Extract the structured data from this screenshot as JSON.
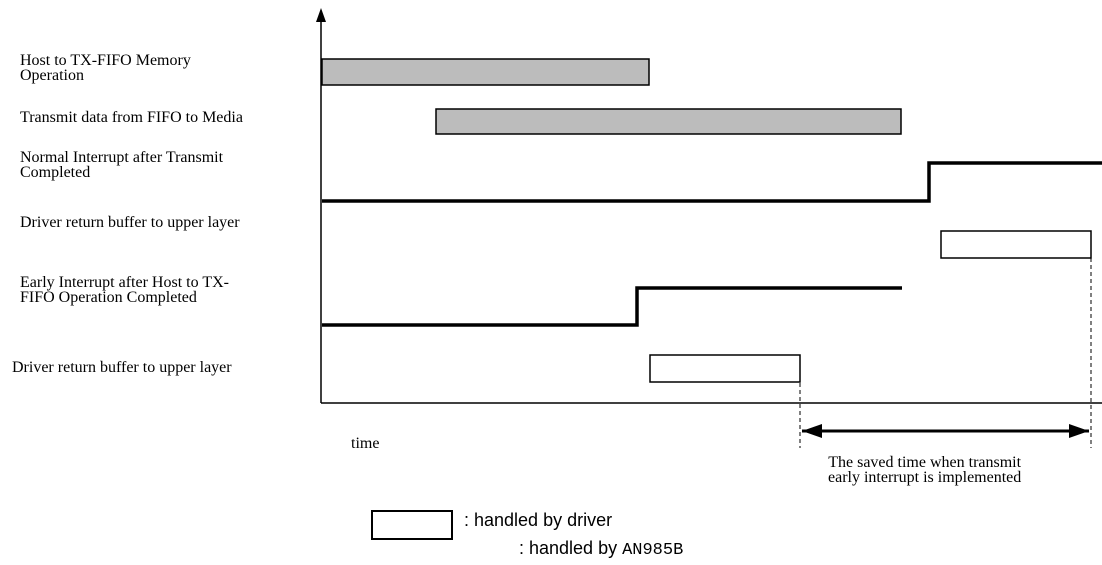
{
  "rows": [
    {
      "label": "Host to TX-FIFO Memory\nOperation"
    },
    {
      "label": "Transmit data from FIFO to Media"
    },
    {
      "label": "Normal Interrupt after Transmit\nCompleted"
    },
    {
      "label": "Driver return buffer to upper layer"
    },
    {
      "label": "Early Interrupt after Host to TX-\nFIFO Operation Completed"
    },
    {
      "label": "Driver return buffer to upper layer"
    }
  ],
  "axis": {
    "x_label": "time"
  },
  "annotation": {
    "saved_time": "The saved time when transmit\nearly interrupt is implemented"
  },
  "legend": {
    "driver_label": ": handled by driver",
    "chip_prefix": ": handled by ",
    "chip_name": "AN985B"
  },
  "colors": {
    "hardware_fill": "#bcbcbc",
    "driver_fill": "#ffffff",
    "line": "#000000"
  }
}
